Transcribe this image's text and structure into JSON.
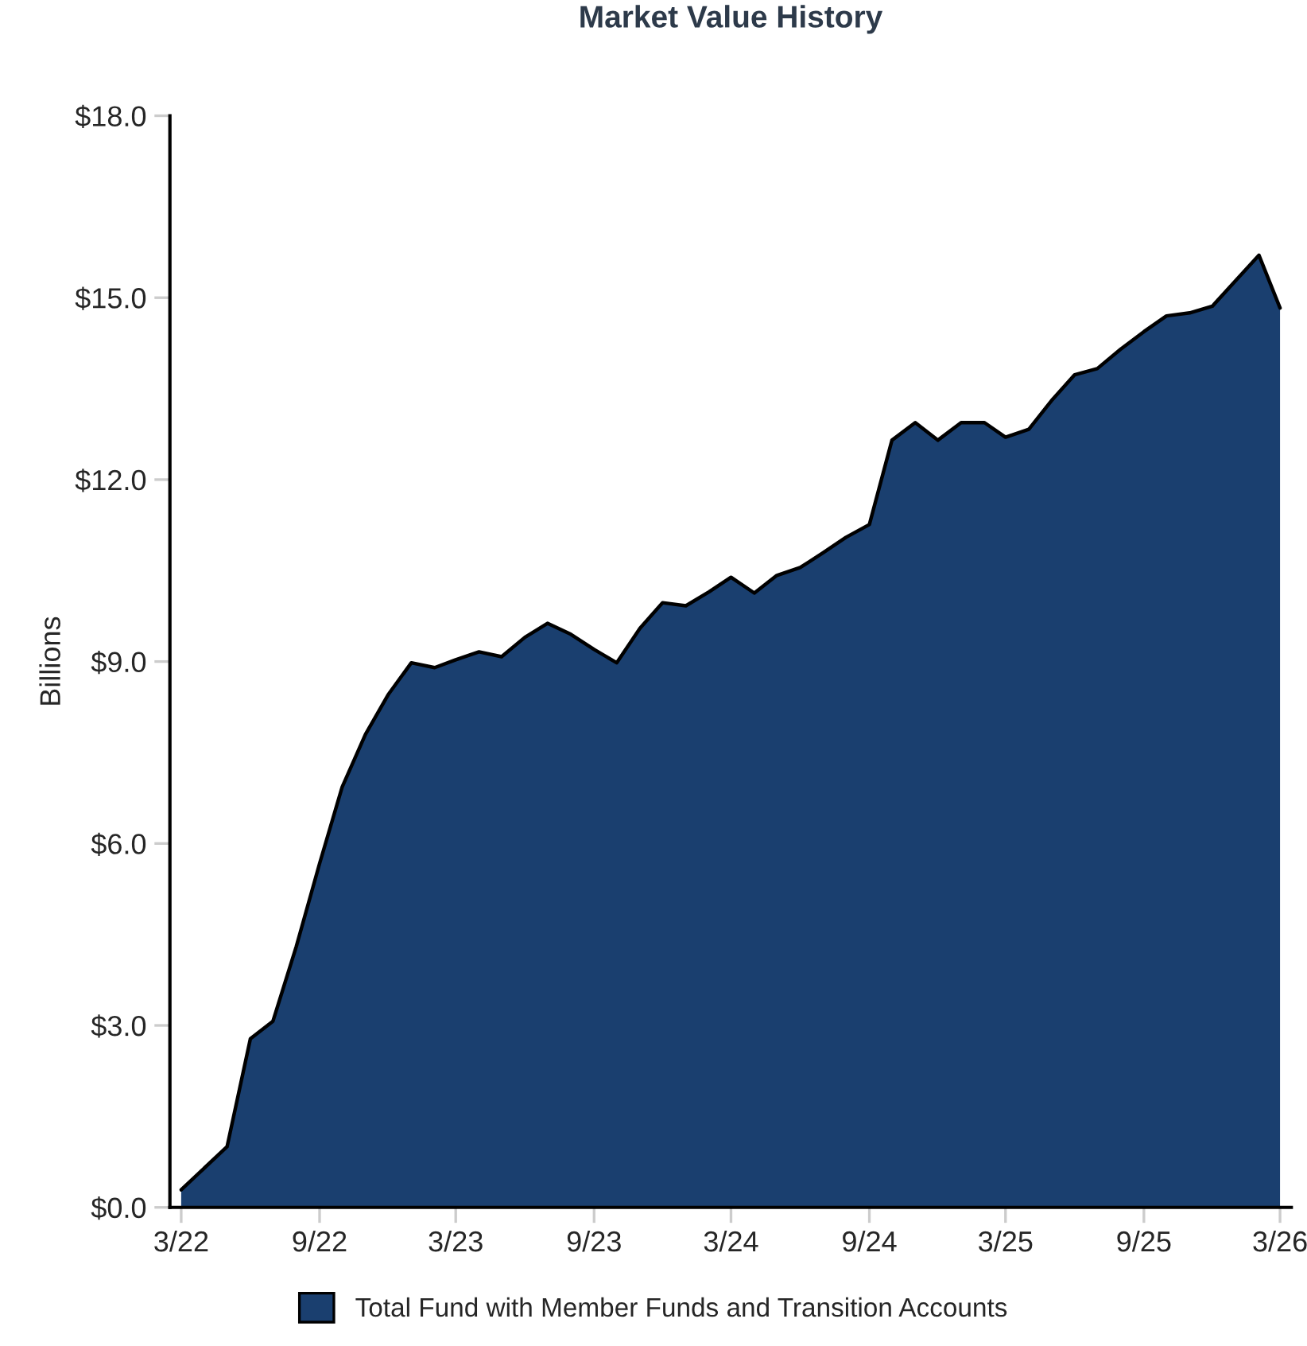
{
  "chart_data": {
    "type": "area",
    "title": "Market Value History",
    "ylabel": "Billions",
    "x": [
      "2022-03",
      "2022-05",
      "2022-06",
      "2022-07",
      "2022-08",
      "2022-09",
      "2022-10",
      "2022-11",
      "2022-12",
      "2023-01",
      "2023-02",
      "2023-03",
      "2023-04",
      "2023-05",
      "2023-06",
      "2023-07",
      "2023-08",
      "2023-09",
      "2023-10",
      "2023-11",
      "2023-12",
      "2024-01",
      "2024-02",
      "2024-03",
      "2024-04",
      "2024-05",
      "2024-06",
      "2024-07",
      "2024-08",
      "2024-09",
      "2024-10",
      "2024-11",
      "2024-12",
      "2025-01",
      "2025-02",
      "2025-03",
      "2025-04",
      "2025-05",
      "2025-06",
      "2025-07",
      "2025-08",
      "2025-09",
      "2025-10",
      "2025-11",
      "2025-12",
      "2026-01",
      "2026-02",
      "2026-03"
    ],
    "series": [
      {
        "name": "Total Fund with Member Funds and Transition Accounts",
        "color": "#1a3f6f",
        "values": [
          0.29,
          1.0,
          2.78,
          3.07,
          4.3,
          5.67,
          6.93,
          7.8,
          8.45,
          8.98,
          8.9,
          9.03,
          9.16,
          9.08,
          9.4,
          9.63,
          9.45,
          9.2,
          8.98,
          9.55,
          9.97,
          9.92,
          10.15,
          10.39,
          10.13,
          10.42,
          10.55,
          10.79,
          11.05,
          11.26,
          12.65,
          12.94,
          12.65,
          12.94,
          12.94,
          12.7,
          12.83,
          13.3,
          13.73,
          13.83,
          14.15,
          14.44,
          14.7,
          14.75,
          14.86,
          15.28,
          15.7,
          14.83
        ]
      }
    ],
    "xlim": [
      "2022-02-14",
      "2026-03-16"
    ],
    "xticks": [
      {
        "value": "2022-03",
        "label": "3/22"
      },
      {
        "value": "2022-09",
        "label": "9/22"
      },
      {
        "value": "2023-03",
        "label": "3/23"
      },
      {
        "value": "2023-09",
        "label": "9/23"
      },
      {
        "value": "2024-03",
        "label": "3/24"
      },
      {
        "value": "2024-09",
        "label": "9/24"
      },
      {
        "value": "2025-03",
        "label": "3/25"
      },
      {
        "value": "2025-09",
        "label": "9/25"
      },
      {
        "value": "2026-03",
        "label": "3/26"
      }
    ],
    "ylim": [
      0,
      18
    ],
    "yticks": [
      {
        "value": 0,
        "label": "$0.0"
      },
      {
        "value": 3,
        "label": "$3.0"
      },
      {
        "value": 6,
        "label": "$6.0"
      },
      {
        "value": 9,
        "label": "$9.0"
      },
      {
        "value": 12,
        "label": "$12.0"
      },
      {
        "value": 15,
        "label": "$15.0"
      },
      {
        "value": 18,
        "label": "$18.0"
      }
    ],
    "grid": false,
    "legend": "bottom"
  }
}
